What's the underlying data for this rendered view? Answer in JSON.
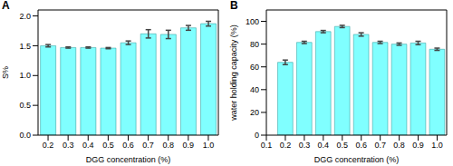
{
  "chart_data": [
    {
      "type": "bar",
      "title": "A",
      "x_label": "DGG concentration (%)",
      "y_label": "S%",
      "categories": [
        "0.2",
        "0.3",
        "0.4",
        "0.5",
        "0.6",
        "0.7",
        "0.8",
        "0.9",
        "1.0"
      ],
      "values": [
        1.5,
        1.47,
        1.47,
        1.46,
        1.55,
        1.7,
        1.69,
        1.8,
        1.87
      ],
      "errors": [
        0.02,
        0.01,
        0.01,
        0.01,
        0.03,
        0.07,
        0.07,
        0.04,
        0.04
      ],
      "color": "#80ffff",
      "ylim": [
        0,
        2.1
      ],
      "yticks": [
        {
          "value": 0,
          "label": "0.0"
        },
        0.5,
        {
          "value": 1,
          "label": "1.0"
        },
        1.5,
        {
          "value": 2,
          "label": "2.0"
        }
      ]
    },
    {
      "type": "bar",
      "title": "B",
      "x_label": "DGG concentration (%)",
      "y_label": "water holding capacity (%)",
      "x": [
        0.2,
        0.3,
        0.4,
        0.5,
        0.6,
        0.7,
        0.8,
        0.9,
        1.0
      ],
      "values": [
        64,
        81.5,
        91,
        95.5,
        88.5,
        81.5,
        80,
        81,
        75.5
      ],
      "errors": [
        2,
        1,
        1,
        1,
        1.5,
        1,
        1,
        1.5,
        1
      ],
      "color": "#80ffff",
      "xlim": [
        0.1,
        1.05
      ],
      "xticks": [
        0.1,
        0.2,
        0.3,
        0.4,
        0.5,
        0.6,
        0.7,
        0.8,
        0.9,
        {
          "value": 1,
          "label": "1.0"
        }
      ],
      "ylim": [
        0,
        110
      ],
      "yticks": [
        0,
        20,
        40,
        60,
        80,
        100
      ]
    }
  ]
}
